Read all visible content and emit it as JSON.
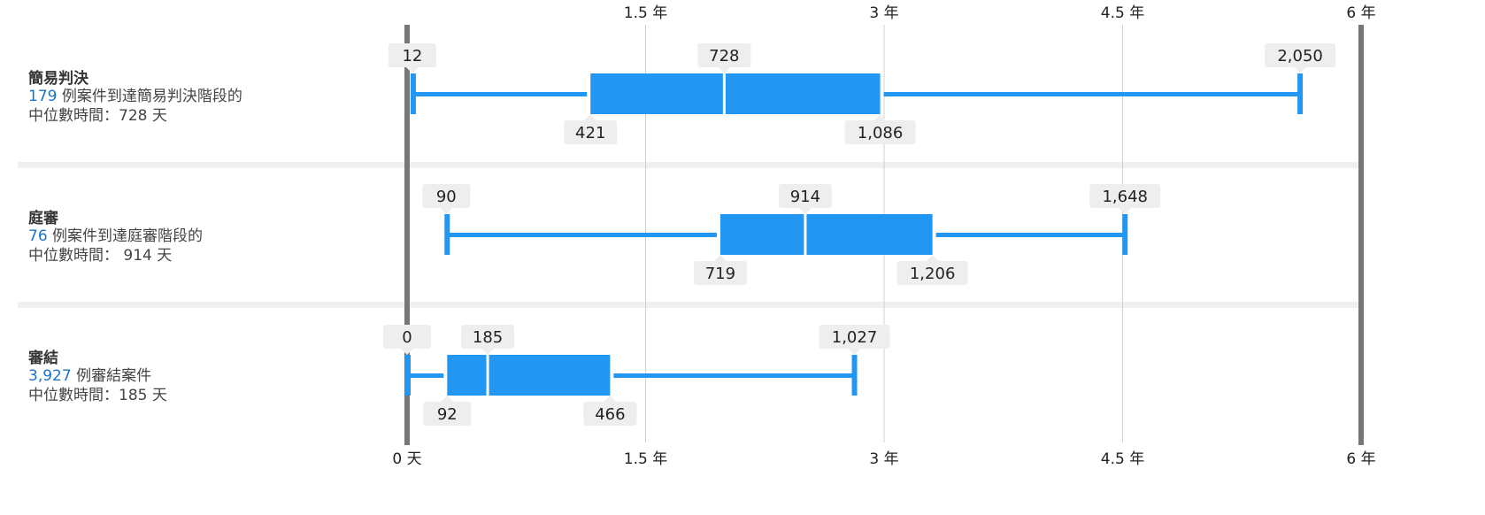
{
  "colors": {
    "box": "#2196f3",
    "whisker": "#2196f3",
    "separator": "#f0f0f0",
    "label_bg": "#eeeeee",
    "axis": "#777777",
    "grid": "#d0d0d0",
    "count": "#1a73c8"
  },
  "rows": [
    {
      "title": "簡易判決",
      "count": "179",
      "desc_after_count": " 例案件到達簡易判決階段的",
      "median_line": "中位數時間：728 天"
    },
    {
      "title": "庭審",
      "count": "76",
      "desc_after_count": " 例案件到達庭審階段的",
      "median_line": "中位數時間： 914 天"
    },
    {
      "title": "審結",
      "count": "3,927",
      "desc_after_count": " 例審結案件",
      "median_line": "中位數時間：185 天"
    }
  ],
  "chart_data": {
    "type": "boxplot",
    "unit": "天",
    "xlim": [
      0,
      2190
    ],
    "top_ticks": [
      {
        "value": 547.5,
        "label": "1.5 年"
      },
      {
        "value": 1095,
        "label": "3 年"
      },
      {
        "value": 1642.5,
        "label": "4.5 年"
      },
      {
        "value": 2190,
        "label": "6 年"
      }
    ],
    "bottom_ticks": [
      {
        "value": 0,
        "label": "0 天"
      },
      {
        "value": 547.5,
        "label": "1.5 年"
      },
      {
        "value": 1095,
        "label": "3 年"
      },
      {
        "value": 1642.5,
        "label": "4.5 年"
      },
      {
        "value": 2190,
        "label": "6 年"
      }
    ],
    "series": [
      {
        "category": "簡易判決",
        "min": 12,
        "q1": 421,
        "median": 728,
        "q3": 1086,
        "max": 2050,
        "labels": {
          "min": "12",
          "q1": "421",
          "median": "728",
          "q3": "1,086",
          "max": "2,050"
        }
      },
      {
        "category": "庭審",
        "min": 90,
        "q1": 719,
        "median": 914,
        "q3": 1206,
        "max": 1648,
        "labels": {
          "min": "90",
          "q1": "719",
          "median": "914",
          "q3": "1,206",
          "max": "1,648"
        }
      },
      {
        "category": "審結",
        "min": 0,
        "q1": 92,
        "median": 185,
        "q3": 466,
        "max": 1027,
        "labels": {
          "min": "0",
          "q1": "92",
          "median": "185",
          "q3": "466",
          "max": "1,027"
        }
      }
    ]
  }
}
